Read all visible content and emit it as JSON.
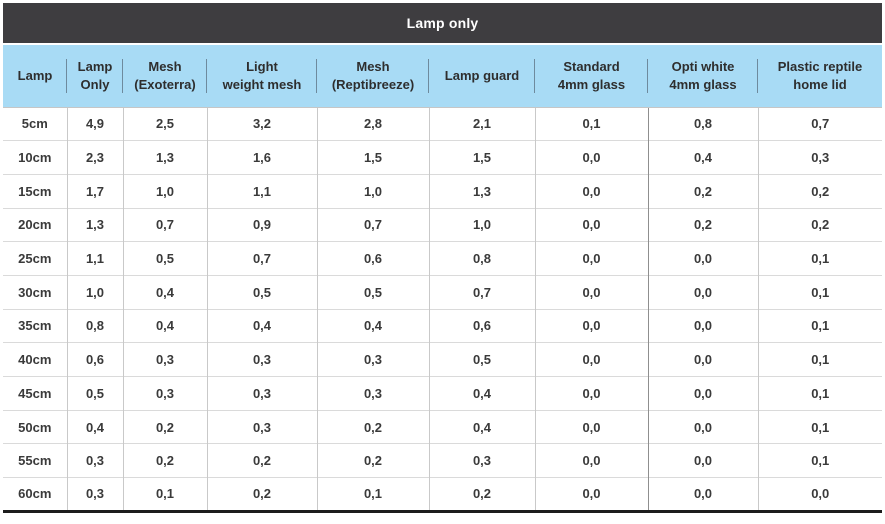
{
  "chart_data": {
    "type": "table",
    "title": "Lamp only",
    "columns": [
      "Lamp",
      "Lamp\nOnly",
      "Mesh\n(Exoterra)",
      "Light\nweight mesh",
      "Mesh\n(Reptibreeze)",
      "Lamp guard",
      "Standard\n4mm glass",
      "Opti white\n4mm glass",
      "Plastic reptile\nhome lid"
    ],
    "rows": [
      [
        "5cm",
        "4,9",
        "2,5",
        "3,2",
        "2,8",
        "2,1",
        "0,1",
        "0,8",
        "0,7"
      ],
      [
        "10cm",
        "2,3",
        "1,3",
        "1,6",
        "1,5",
        "1,5",
        "0,0",
        "0,4",
        "0,3"
      ],
      [
        "15cm",
        "1,7",
        "1,0",
        "1,1",
        "1,0",
        "1,3",
        "0,0",
        "0,2",
        "0,2"
      ],
      [
        "20cm",
        "1,3",
        "0,7",
        "0,9",
        "0,7",
        "1,0",
        "0,0",
        "0,2",
        "0,2"
      ],
      [
        "25cm",
        "1,1",
        "0,5",
        "0,7",
        "0,6",
        "0,8",
        "0,0",
        "0,0",
        "0,1"
      ],
      [
        "30cm",
        "1,0",
        "0,4",
        "0,5",
        "0,5",
        "0,7",
        "0,0",
        "0,0",
        "0,1"
      ],
      [
        "35cm",
        "0,8",
        "0,4",
        "0,4",
        "0,4",
        "0,6",
        "0,0",
        "0,0",
        "0,1"
      ],
      [
        "40cm",
        "0,6",
        "0,3",
        "0,3",
        "0,3",
        "0,5",
        "0,0",
        "0,0",
        "0,1"
      ],
      [
        "45cm",
        "0,5",
        "0,3",
        "0,3",
        "0,3",
        "0,4",
        "0,0",
        "0,0",
        "0,1"
      ],
      [
        "50cm",
        "0,4",
        "0,2",
        "0,3",
        "0,2",
        "0,4",
        "0,0",
        "0,0",
        "0,1"
      ],
      [
        "55cm",
        "0,3",
        "0,2",
        "0,2",
        "0,2",
        "0,3",
        "0,0",
        "0,0",
        "0,1"
      ],
      [
        "60cm",
        "0,3",
        "0,1",
        "0,2",
        "0,1",
        "0,2",
        "0,0",
        "0,0",
        "0,0"
      ]
    ],
    "decimal_separator": ",",
    "layout": {
      "grid": true,
      "legend": "none"
    }
  },
  "colors": {
    "title_bar_bg": "#3e3d40",
    "title_text": "#ffffff",
    "header_bg": "#a8dbf5",
    "header_text": "#2e2e2e",
    "body_text": "#3a3a3a",
    "grid_vertical": "#c9c9c9",
    "grid_horizontal": "#dadada",
    "header_divider": "#6e8a9d",
    "bottom_border": "#1c1c1c"
  }
}
